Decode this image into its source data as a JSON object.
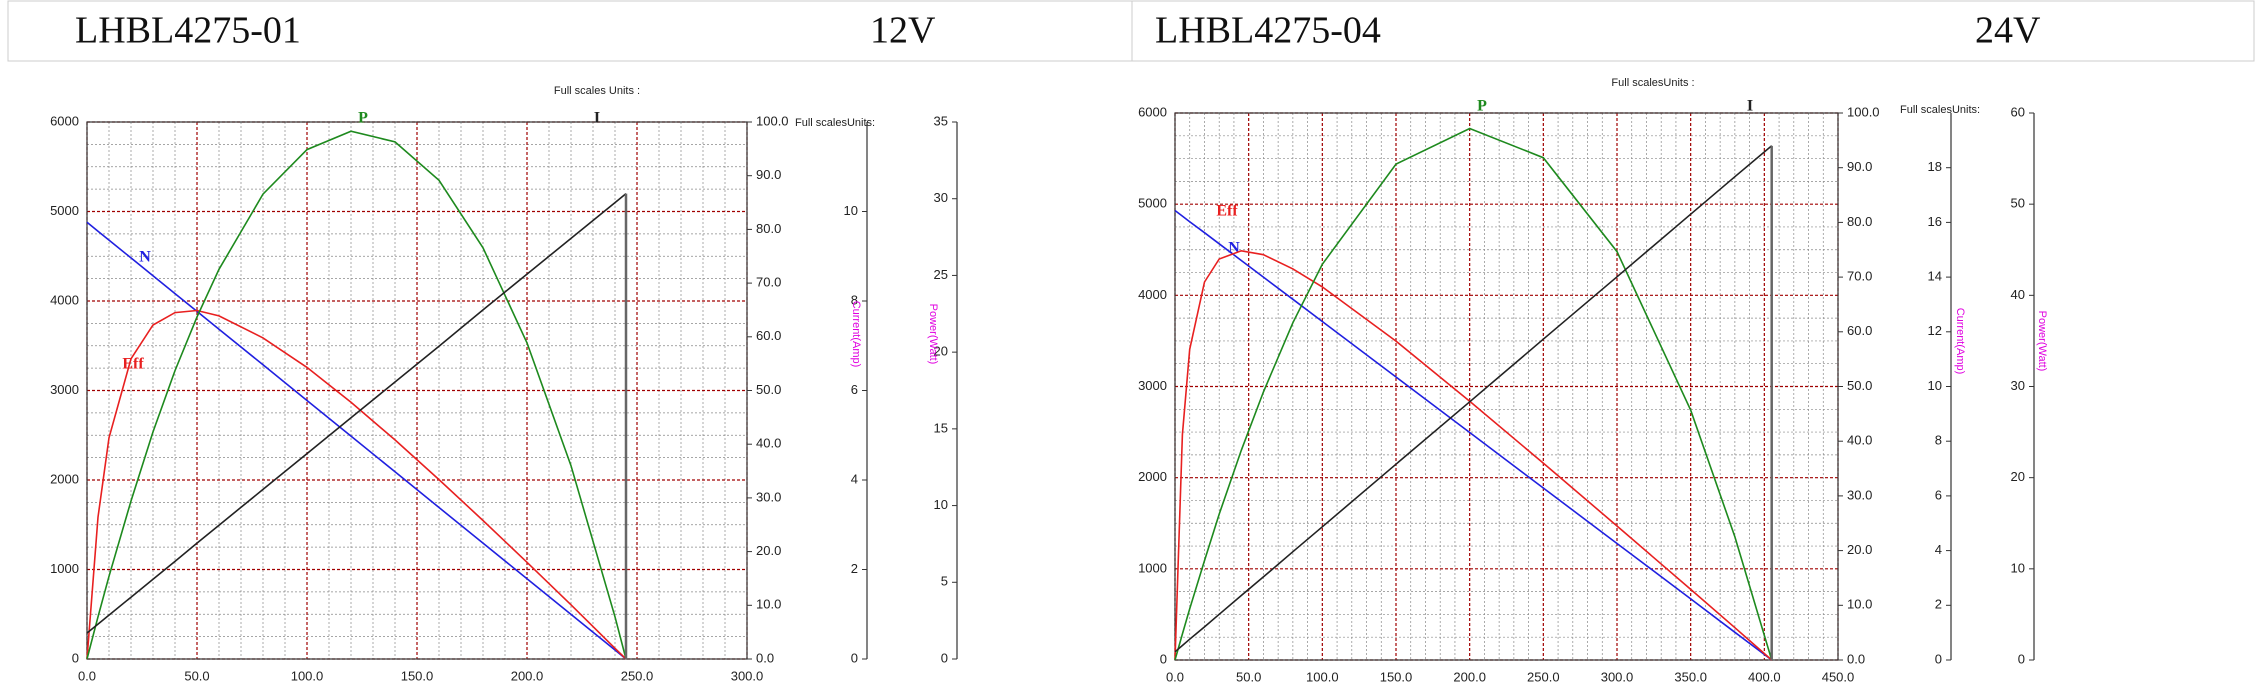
{
  "chart_data": [
    {
      "type": "line",
      "title": "LHBL4275-01",
      "subtitle": "12V",
      "annotations": [
        "Full scales Units :",
        "Full scalesUnits:"
      ],
      "y3label": "Current(Amp)",
      "y4label": "Power(Watt)",
      "x": [
        0,
        5,
        10,
        20,
        30,
        40,
        50,
        60,
        80,
        100,
        120,
        140,
        160,
        180,
        200,
        220,
        240,
        245
      ],
      "series": [
        {
          "name": "N",
          "color": "#2020e0",
          "values": [
            4880,
            4780,
            4681,
            4482,
            4282,
            4083,
            3884,
            3685,
            3287,
            2888,
            2490,
            2092,
            1693,
            1295,
            896,
            498,
            100,
            0
          ]
        },
        {
          "name": "Eff",
          "color": "#e82020",
          "axis": "y2",
          "values": [
            0,
            26.4,
            41.2,
            55.9,
            62.2,
            64.5,
            64.9,
            63.9,
            59.8,
            54.3,
            47.8,
            40.8,
            33.4,
            25.8,
            18.0,
            10.1,
            2.0,
            0
          ]
        },
        {
          "name": "P",
          "color": "#1e8a1e",
          "axis": "y4",
          "values": [
            0,
            2.75,
            5.39,
            10.3,
            14.8,
            18.8,
            22.3,
            25.4,
            30.3,
            33.2,
            34.4,
            33.7,
            31.2,
            26.8,
            20.6,
            12.6,
            2.75,
            0
          ]
        },
        {
          "name": "I",
          "color": "#222222",
          "axis": "y3",
          "values": [
            0.58,
            0.78,
            0.98,
            1.38,
            1.78,
            2.18,
            2.59,
            2.99,
            3.79,
            4.59,
            5.39,
            6.19,
            6.99,
            7.8,
            8.6,
            9.4,
            10.2,
            10.4
          ]
        }
      ],
      "xlim": [
        0,
        300
      ],
      "xticks": [
        {
          "value": 0,
          "label": "0.0"
        },
        {
          "value": 50,
          "label": "50.0"
        },
        {
          "value": 100,
          "label": "100.0"
        },
        {
          "value": 150,
          "label": "150.0"
        },
        {
          "value": 200,
          "label": "200.0"
        },
        {
          "value": 250,
          "label": "250.0"
        },
        {
          "value": 300,
          "label": "300.0"
        }
      ],
      "ylim": [
        0,
        6000
      ],
      "yticks": [
        0,
        1000,
        2000,
        3000,
        4000,
        5000,
        6000
      ],
      "y2lim": [
        0,
        100
      ],
      "y2ticks": [
        {
          "value": 0,
          "label": "0.0"
        },
        {
          "value": 10,
          "label": "10.0"
        },
        {
          "value": 20,
          "label": "20.0"
        },
        {
          "value": 30,
          "label": "30.0"
        },
        {
          "value": 40,
          "label": "40.0"
        },
        {
          "value": 50,
          "label": "50.0"
        },
        {
          "value": 60,
          "label": "60.0"
        },
        {
          "value": 70,
          "label": "70.0"
        },
        {
          "value": 80,
          "label": "80.0"
        },
        {
          "value": 90,
          "label": "90.0"
        },
        {
          "value": 100,
          "label": "100.0"
        }
      ],
      "y3lim": [
        0,
        12
      ],
      "y3ticks": [
        0,
        2,
        4,
        6,
        8,
        10
      ],
      "y4lim": [
        0,
        35
      ],
      "y4ticks": [
        0,
        5,
        10,
        15,
        20,
        25,
        30,
        35
      ],
      "grid": true
    },
    {
      "type": "line",
      "title": "LHBL4275-04",
      "subtitle": "24V",
      "annotations": [
        "Full scalesUnits :",
        "Full scalesUnits:"
      ],
      "y3label": "Current(Amp)",
      "y4label": "Power(Watt)",
      "x": [
        0,
        5,
        10,
        20,
        30,
        45,
        60,
        80,
        100,
        150,
        200,
        250,
        300,
        350,
        380,
        405
      ],
      "series": [
        {
          "name": "N",
          "color": "#2020e0",
          "values": [
            4930,
            4869,
            4808,
            4687,
            4565,
            4382,
            4200,
            3956,
            3713,
            3104,
            2495,
            1887,
            1278,
            670,
            304,
            0
          ]
        },
        {
          "name": "Eff",
          "color": "#e82020",
          "axis": "y2",
          "values": [
            0,
            41.2,
            56.8,
            69.1,
            73.3,
            74.8,
            74.1,
            71.5,
            68.2,
            58.3,
            47.3,
            36.0,
            24.5,
            12.9,
            5.9,
            0
          ]
        },
        {
          "name": "P",
          "color": "#1e8a1e",
          "axis": "y4",
          "values": [
            0,
            2.85,
            5.62,
            10.9,
            16.0,
            23.0,
            29.4,
            37.0,
            43.4,
            54.4,
            58.3,
            55.1,
            44.8,
            27.4,
            13.5,
            0
          ]
        },
        {
          "name": "I",
          "color": "#222222",
          "axis": "y3",
          "values": [
            0.3,
            0.53,
            0.76,
            1.21,
            1.67,
            2.36,
            3.04,
            3.96,
            4.87,
            7.16,
            9.44,
            11.73,
            14.01,
            16.3,
            17.67,
            18.8
          ]
        }
      ],
      "xlim": [
        0,
        450
      ],
      "xticks": [
        {
          "value": 0,
          "label": "0.0"
        },
        {
          "value": 50,
          "label": "50.0"
        },
        {
          "value": 100,
          "label": "100.0"
        },
        {
          "value": 150,
          "label": "150.0"
        },
        {
          "value": 200,
          "label": "200.0"
        },
        {
          "value": 250,
          "label": "250.0"
        },
        {
          "value": 300,
          "label": "300.0"
        },
        {
          "value": 350,
          "label": "350.0"
        },
        {
          "value": 400,
          "label": "400.0"
        },
        {
          "value": 450,
          "label": "450.0"
        }
      ],
      "ylim": [
        0,
        6000
      ],
      "yticks": [
        0,
        1000,
        2000,
        3000,
        4000,
        5000,
        6000
      ],
      "y2lim": [
        0,
        100
      ],
      "y2ticks": [
        {
          "value": 0,
          "label": "0.0"
        },
        {
          "value": 10,
          "label": "10.0"
        },
        {
          "value": 20,
          "label": "20.0"
        },
        {
          "value": 30,
          "label": "30.0"
        },
        {
          "value": 40,
          "label": "40.0"
        },
        {
          "value": 50,
          "label": "50.0"
        },
        {
          "value": 60,
          "label": "60.0"
        },
        {
          "value": 70,
          "label": "70.0"
        },
        {
          "value": 80,
          "label": "80.0"
        },
        {
          "value": 90,
          "label": "90.0"
        },
        {
          "value": 100,
          "label": "100.0"
        }
      ],
      "y3lim": [
        0,
        20
      ],
      "y3ticks": [
        0,
        2,
        4,
        6,
        8,
        10,
        12,
        14,
        16,
        18
      ],
      "y4lim": [
        0,
        60
      ],
      "y4ticks": [
        0,
        10,
        20,
        30,
        40,
        50,
        60
      ],
      "grid": true
    }
  ]
}
